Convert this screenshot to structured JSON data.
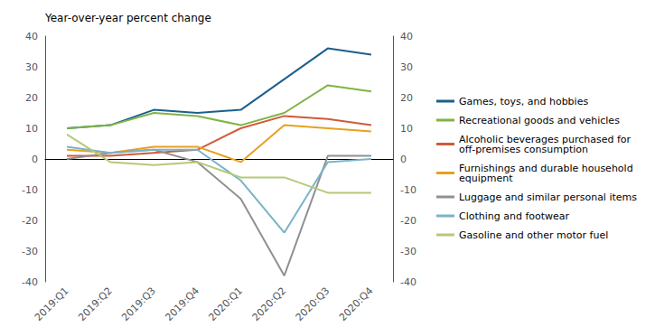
{
  "chart_data": {
    "type": "line",
    "ylabel": "Year-over-year percent change",
    "categories": [
      "2019:Q1",
      "2019:Q2",
      "2019:Q3",
      "2019:Q4",
      "2020:Q1",
      "2020:Q2",
      "2020:Q3",
      "2020:Q4"
    ],
    "series": [
      {
        "name": "Games, toys, and hobbies",
        "color": "#1b5f8c",
        "values": [
          10,
          11,
          16,
          15,
          16,
          26,
          36,
          34
        ]
      },
      {
        "name": "Recreational goods and vehicles",
        "color": "#7db544",
        "values": [
          10,
          11,
          15,
          14,
          11,
          15,
          24,
          22
        ]
      },
      {
        "name": "Alcoholic beverages purchased for\noff-premises consumption",
        "color": "#d05a3b",
        "values": [
          1,
          1,
          2,
          3,
          10,
          14,
          13,
          11
        ]
      },
      {
        "name": "Furnishings and durable household\nequipment",
        "color": "#e8a020",
        "values": [
          3,
          2,
          4,
          4,
          -1,
          11,
          10,
          9
        ]
      },
      {
        "name": "Luggage and similar personal items",
        "color": "#909090",
        "values": [
          0,
          2,
          3,
          -1,
          -13,
          -38,
          1,
          1
        ]
      },
      {
        "name": "Clothing and footwear",
        "color": "#7ab3c8",
        "values": [
          4,
          2,
          3,
          3,
          -7,
          -24,
          -1,
          0
        ]
      },
      {
        "name": "Gasoline and other motor fuel",
        "color": "#b5c97a",
        "values": [
          8,
          -1,
          -2,
          -1,
          -6,
          -6,
          -11,
          -11
        ]
      }
    ],
    "ylim": [
      -40,
      40
    ],
    "yticks": [
      -40,
      -30,
      -20,
      -10,
      0,
      10,
      20,
      30,
      40
    ],
    "y2lim": [
      -40,
      40
    ],
    "y2ticks": [
      -40,
      -30,
      -20,
      -10,
      0,
      10,
      20,
      30,
      40
    ],
    "grid": false,
    "legend": "right"
  }
}
